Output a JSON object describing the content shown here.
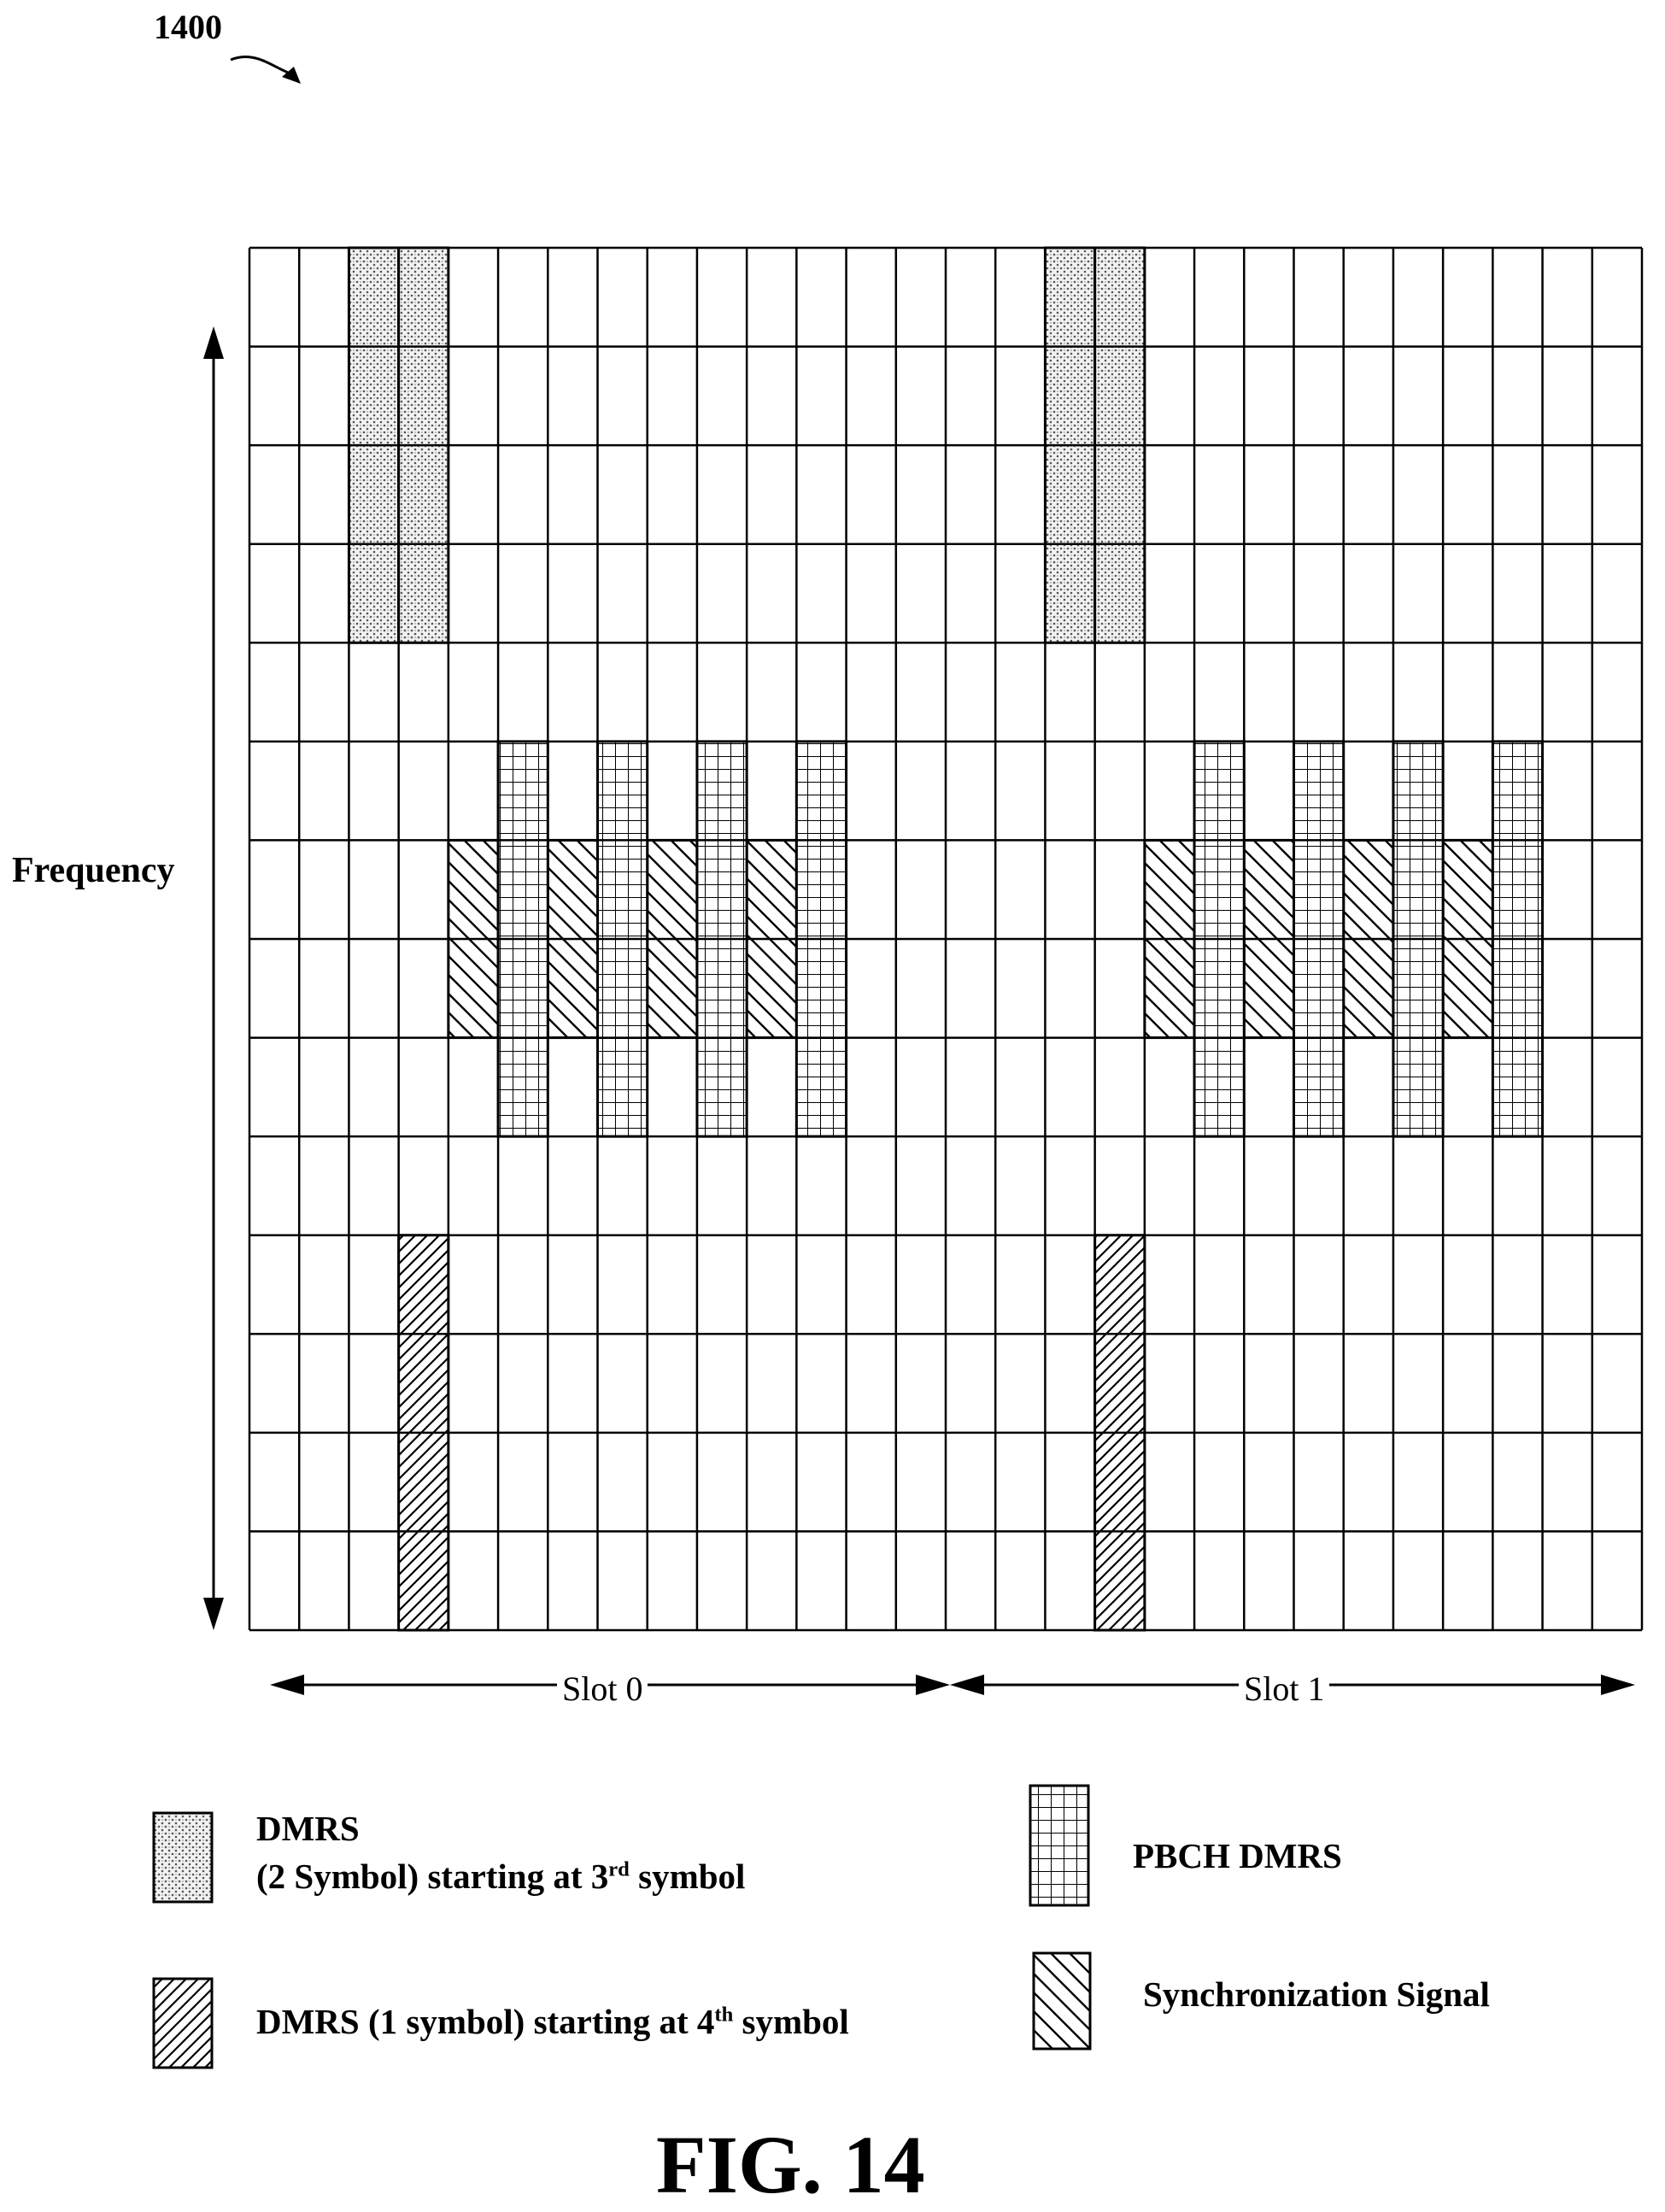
{
  "figure": {
    "ref_number": "1400",
    "caption": "FIG. 14"
  },
  "axes": {
    "frequency_label": "Frequency",
    "slot_labels": [
      "Slot 0",
      "Slot 1"
    ]
  },
  "grid": {
    "columns": 28,
    "rows": 14
  },
  "legend": {
    "dmrs_2sym_line1": "DMRS",
    "dmrs_2sym_line2_pre": "(2 Symbol) starting at 3",
    "dmrs_2sym_sup": "rd",
    "dmrs_2sym_line2_post": " symbol",
    "dmrs_1sym_pre": "DMRS (1 symbol) starting at 4",
    "dmrs_1sym_sup": "th",
    "dmrs_1sym_post": " symbol",
    "pbch_dmrs": "PBCH DMRS",
    "sync_signal": "Synchronization Signal"
  }
}
